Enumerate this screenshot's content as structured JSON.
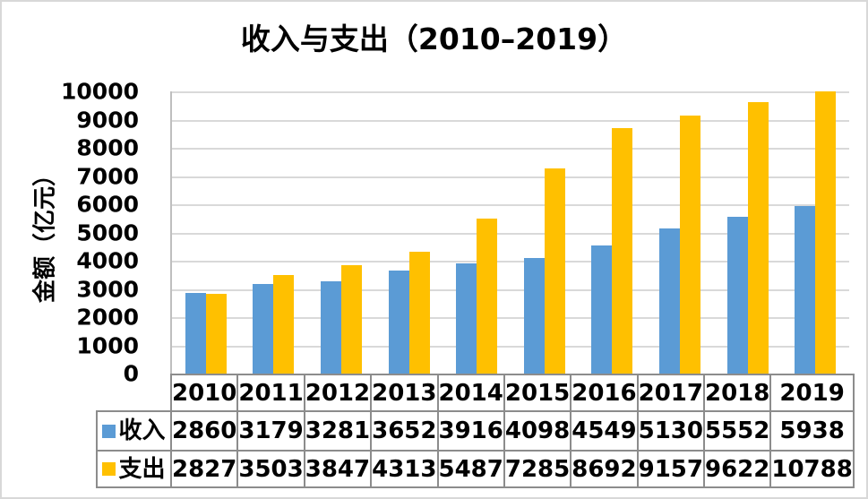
{
  "chart_data": {
    "type": "bar",
    "title": "收入与支出（2010–2019）",
    "ylabel": "金额（亿元）",
    "categories": [
      "2010",
      "2011",
      "2012",
      "2013",
      "2014",
      "2015",
      "2016",
      "2017",
      "2018",
      "2019"
    ],
    "series": [
      {
        "id": "income",
        "name": "收入",
        "color": "#5B9BD5",
        "values": [
          2860,
          3179,
          3281,
          3652,
          3916,
          4098,
          4549,
          5130,
          5552,
          5938
        ]
      },
      {
        "id": "expense",
        "name": "支出",
        "color": "#FFC000",
        "values": [
          2827,
          3503,
          3847,
          4313,
          5487,
          7285,
          8692,
          9157,
          9622,
          10788
        ]
      }
    ],
    "ylim": [
      0,
      10000
    ],
    "ytick_step": 1000,
    "grid": true,
    "legend_position": "table-left",
    "colors": {
      "gridline": "#D9D9D9",
      "axis_line": "#BFBFBF",
      "table_border": "#8C8C8C",
      "text": "#000000",
      "frame_border": "#D8D8D8"
    }
  }
}
